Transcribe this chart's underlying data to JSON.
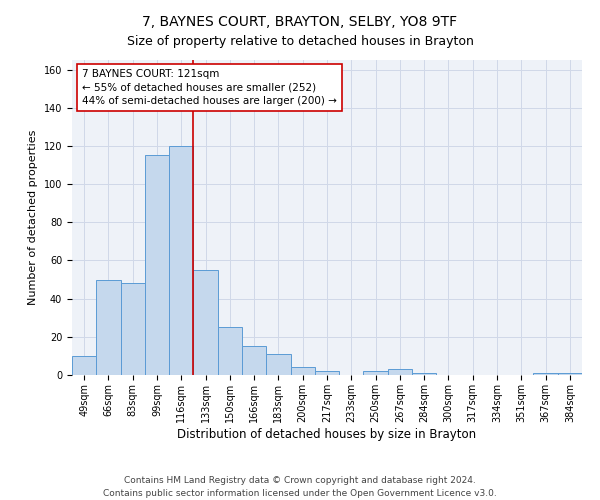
{
  "title1": "7, BAYNES COURT, BRAYTON, SELBY, YO8 9TF",
  "title2": "Size of property relative to detached houses in Brayton",
  "xlabel": "Distribution of detached houses by size in Brayton",
  "ylabel": "Number of detached properties",
  "categories": [
    "49sqm",
    "66sqm",
    "83sqm",
    "99sqm",
    "116sqm",
    "133sqm",
    "150sqm",
    "166sqm",
    "183sqm",
    "200sqm",
    "217sqm",
    "233sqm",
    "250sqm",
    "267sqm",
    "284sqm",
    "300sqm",
    "317sqm",
    "334sqm",
    "351sqm",
    "367sqm",
    "384sqm"
  ],
  "values": [
    10,
    50,
    48,
    115,
    120,
    55,
    25,
    15,
    11,
    4,
    2,
    0,
    2,
    3,
    1,
    0,
    0,
    0,
    0,
    1,
    1
  ],
  "bar_color": "#c5d8ed",
  "bar_edge_color": "#5b9bd5",
  "bar_width": 1.0,
  "vline_x": 4.5,
  "vline_color": "#cc0000",
  "annotation_text": "7 BAYNES COURT: 121sqm\n← 55% of detached houses are smaller (252)\n44% of semi-detached houses are larger (200) →",
  "annotation_box_color": "white",
  "annotation_edge_color": "#cc0000",
  "ylim": [
    0,
    165
  ],
  "yticks": [
    0,
    20,
    40,
    60,
    80,
    100,
    120,
    140,
    160
  ],
  "footer": "Contains HM Land Registry data © Crown copyright and database right 2024.\nContains public sector information licensed under the Open Government Licence v3.0.",
  "bg_color": "#eef2f8",
  "grid_color": "#d0d8e8",
  "title1_fontsize": 10,
  "title2_fontsize": 9,
  "xlabel_fontsize": 8.5,
  "ylabel_fontsize": 8,
  "tick_fontsize": 7,
  "annotation_fontsize": 7.5,
  "footer_fontsize": 6.5
}
